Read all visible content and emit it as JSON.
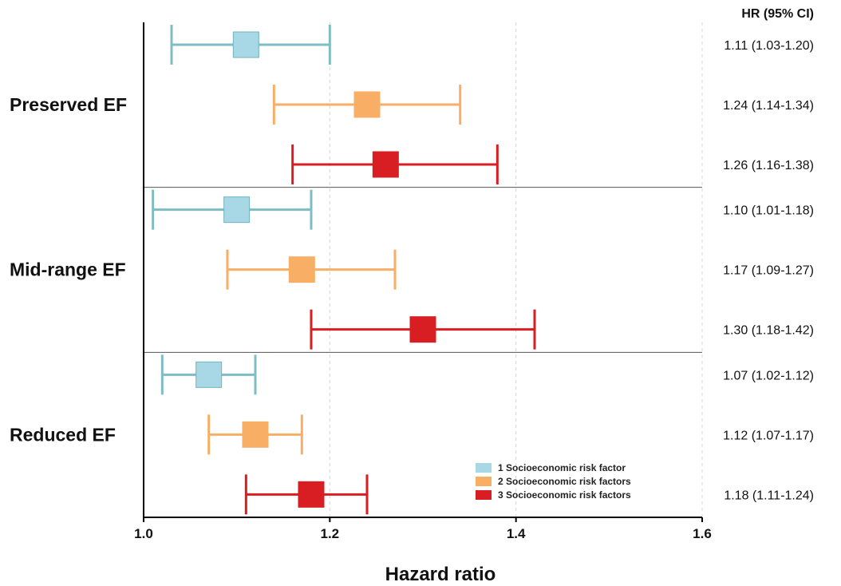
{
  "chart_data": {
    "type": "forest",
    "xlabel": "Hazard ratio",
    "xlim": [
      1.0,
      1.6
    ],
    "xticks": [
      1.0,
      1.2,
      1.4,
      1.6
    ],
    "xtick_labels": [
      "1.0",
      "1.2",
      "1.4",
      "1.6"
    ],
    "grid": "vertical dashed",
    "hr_column_header": "HR (95% CI)",
    "legend_position": "bottom-right",
    "series": [
      {
        "name": "1 Socioeconomic risk factor",
        "color": "#a8d8e6"
      },
      {
        "name": "2 Socioeconomic risk factors",
        "color": "#f9ae66"
      },
      {
        "name": "3 Socioeconomic risk factors",
        "color": "#d81e22"
      }
    ],
    "groups": [
      {
        "label": "Preserved EF",
        "rows": [
          {
            "series": 0,
            "hr": 1.11,
            "lo": 1.03,
            "hi": 1.2,
            "text": "1.11 (1.03-1.20)"
          },
          {
            "series": 1,
            "hr": 1.24,
            "lo": 1.14,
            "hi": 1.34,
            "text": "1.24 (1.14-1.34)"
          },
          {
            "series": 2,
            "hr": 1.26,
            "lo": 1.16,
            "hi": 1.38,
            "text": "1.26 (1.16-1.38)"
          }
        ]
      },
      {
        "label": "Mid-range EF",
        "rows": [
          {
            "series": 0,
            "hr": 1.1,
            "lo": 1.01,
            "hi": 1.18,
            "text": "1.10 (1.01-1.18)"
          },
          {
            "series": 1,
            "hr": 1.17,
            "lo": 1.09,
            "hi": 1.27,
            "text": "1.17 (1.09-1.27)"
          },
          {
            "series": 2,
            "hr": 1.3,
            "lo": 1.18,
            "hi": 1.42,
            "text": "1.30 (1.18-1.42)"
          }
        ]
      },
      {
        "label": "Reduced EF",
        "rows": [
          {
            "series": 0,
            "hr": 1.07,
            "lo": 1.02,
            "hi": 1.12,
            "text": "1.07 (1.02-1.12)"
          },
          {
            "series": 1,
            "hr": 1.12,
            "lo": 1.07,
            "hi": 1.17,
            "text": "1.12 (1.07-1.17)"
          },
          {
            "series": 2,
            "hr": 1.18,
            "lo": 1.11,
            "hi": 1.24,
            "text": "1.18 (1.11-1.24)"
          }
        ]
      }
    ]
  }
}
